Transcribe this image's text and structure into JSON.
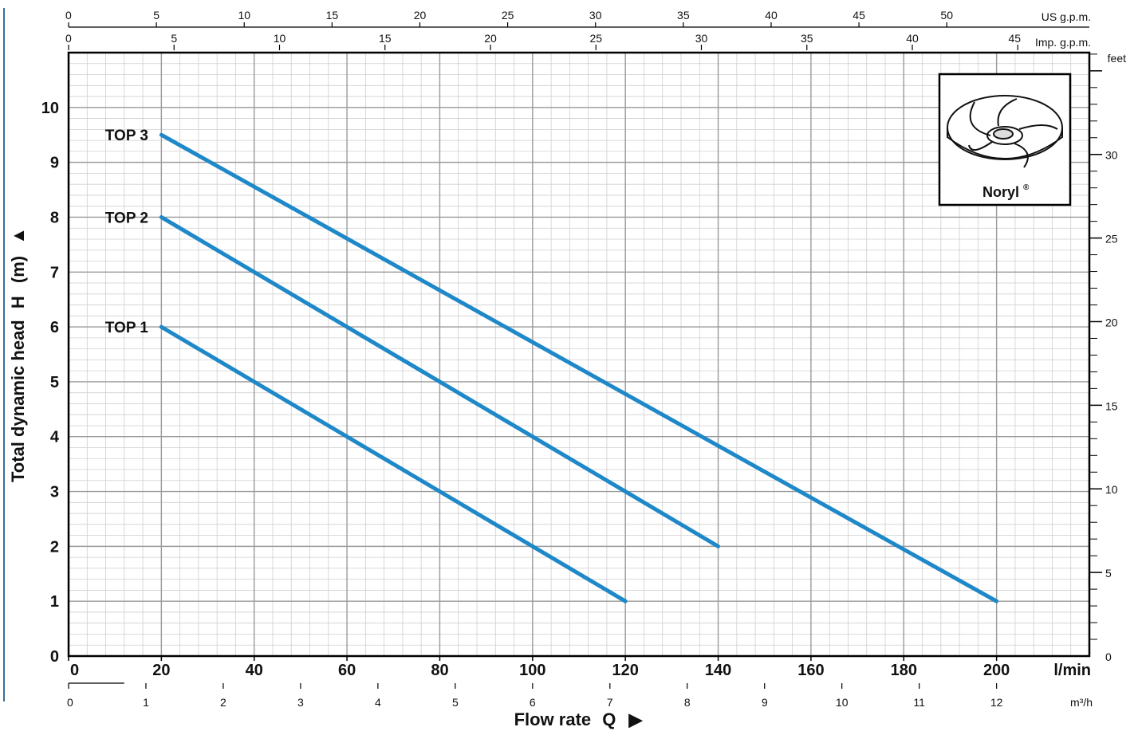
{
  "chart_data": {
    "type": "line",
    "ylabel_parts": [
      "Total dynamic head",
      "H",
      "(m)",
      "▲"
    ],
    "xlabel_parts": [
      "Flow rate",
      "Q",
      "▶"
    ],
    "x_units": "l/min",
    "ylim": [
      0,
      11
    ],
    "xlim": [
      0,
      220
    ],
    "series": [
      {
        "name": "TOP 1",
        "x": [
          20,
          120
        ],
        "y": [
          6,
          1
        ]
      },
      {
        "name": "TOP 2",
        "x": [
          20,
          140
        ],
        "y": [
          8,
          2
        ]
      },
      {
        "name": "TOP 3",
        "x": [
          20,
          200
        ],
        "y": [
          9.5,
          1
        ]
      }
    ],
    "line_color": "#1e88c8",
    "y_ticks": [
      0,
      1,
      2,
      3,
      4,
      5,
      6,
      7,
      8,
      9,
      10
    ],
    "x_ticks_lmin": [
      0,
      20,
      40,
      60,
      80,
      100,
      120,
      140,
      160,
      180,
      200
    ],
    "secondary_axes": {
      "top_us": {
        "label": "US g.p.m.",
        "ticks": [
          0,
          5,
          10,
          15,
          20,
          25,
          30,
          35,
          40,
          45,
          50
        ]
      },
      "top_imp": {
        "label": "Imp. g.p.m.",
        "ticks": [
          0,
          5,
          10,
          15,
          20,
          25,
          30,
          35,
          40,
          45
        ]
      },
      "bottom_m3h": {
        "label": "m³/h",
        "ticks": [
          0,
          1,
          2,
          3,
          4,
          5,
          6,
          7,
          8,
          9,
          10,
          11,
          12
        ]
      },
      "right_feet": {
        "label": "feet",
        "ticks": [
          0,
          5,
          10,
          15,
          20,
          25,
          30
        ]
      }
    },
    "grid": true,
    "inset": {
      "label": "Noryl",
      "superscript": "®",
      "image": "impeller-icon"
    }
  }
}
